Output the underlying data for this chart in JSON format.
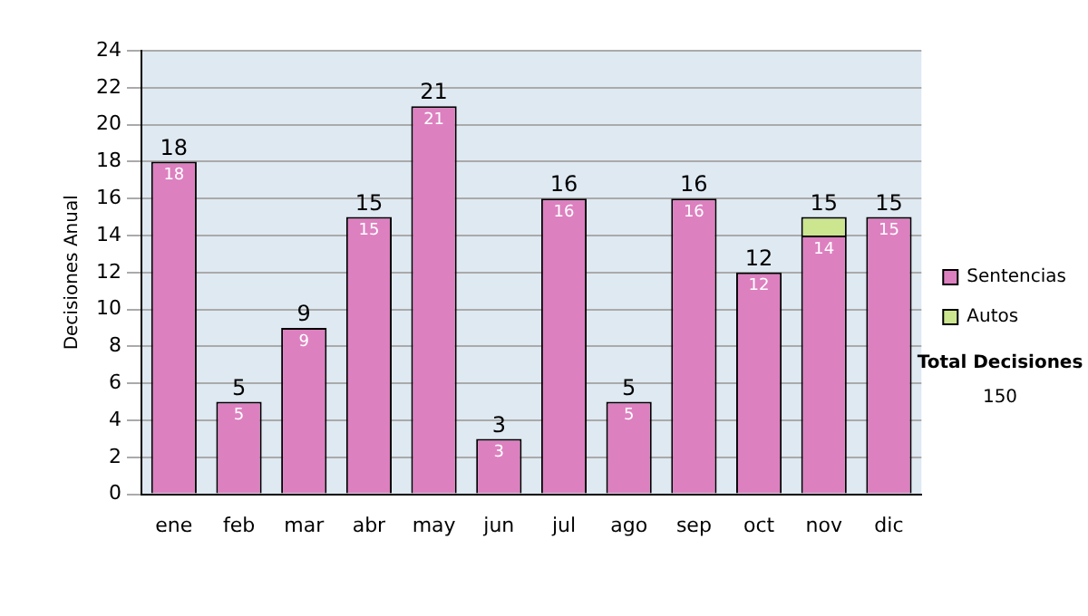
{
  "chart_data": {
    "type": "bar",
    "stacked": true,
    "ylabel": "Decisiones Anual",
    "categories": [
      "ene",
      "feb",
      "mar",
      "abr",
      "may",
      "jun",
      "jul",
      "ago",
      "sep",
      "oct",
      "nov",
      "dic"
    ],
    "series": [
      {
        "name": "Sentencias",
        "color": "#dd80c0",
        "values": [
          18,
          5,
          9,
          15,
          21,
          3,
          16,
          5,
          16,
          12,
          14,
          15
        ],
        "value_labels": [
          "18",
          "5",
          "9",
          "15",
          "21",
          "3",
          "16",
          "5",
          "16",
          "12",
          "14",
          "15"
        ]
      },
      {
        "name": "Autos",
        "color": "#cce58f",
        "values": [
          0,
          0,
          0,
          0,
          0,
          0,
          0,
          0,
          0,
          0,
          1,
          0
        ]
      }
    ],
    "totals": [
      "18",
      "5",
      "9",
      "15",
      "21",
      "3",
      "16",
      "5",
      "16",
      "12",
      "15",
      "15"
    ],
    "ylim": [
      0,
      24
    ],
    "yticks": [
      0,
      2,
      4,
      6,
      8,
      10,
      12,
      14,
      16,
      18,
      20,
      22,
      24
    ],
    "grid": "y",
    "legend": "right",
    "annotations": [
      "Total Decisiones",
      "150"
    ]
  }
}
